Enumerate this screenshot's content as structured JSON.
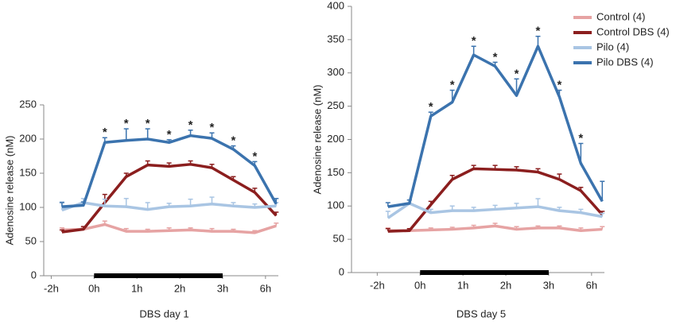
{
  "chart_data": [
    {
      "type": "line",
      "ylabel": "Adenosine release (nM)",
      "xlabel": "DBS day 1",
      "xlim": [
        -0.85,
        10.1
      ],
      "ylim": [
        0,
        250
      ],
      "yticks": [
        0,
        50,
        100,
        150,
        200,
        250
      ],
      "xticks": [
        {
          "value": -0.5,
          "label": "-2h"
        },
        {
          "value": 1.5,
          "label": "0h"
        },
        {
          "value": 3.5,
          "label": "1h"
        },
        {
          "value": 5.5,
          "label": "2h"
        },
        {
          "value": 7.5,
          "label": "3h"
        },
        {
          "value": 9.5,
          "label": "6h"
        }
      ],
      "stimulation_bar": [
        1.5,
        7.5
      ],
      "series": [
        {
          "name": "Control (4)",
          "color": "#e6a3a3",
          "values": [
            67,
            68,
            75,
            65,
            65,
            66,
            67,
            65,
            65,
            63,
            73
          ],
          "errors": [
            3,
            3,
            5,
            4,
            3,
            4,
            3,
            4,
            3,
            3,
            4
          ]
        },
        {
          "name": "Control DBS  (4)",
          "color": "#8b1e1e",
          "values": [
            64,
            68,
            107,
            145,
            162,
            160,
            163,
            158,
            140,
            122,
            88
          ],
          "errors": [
            3,
            4,
            12,
            5,
            6,
            5,
            5,
            5,
            5,
            6,
            5
          ]
        },
        {
          "name": "Pilo (4)",
          "color": "#a9c5e3",
          "values": [
            96,
            107,
            102,
            101,
            97,
            101,
            102,
            105,
            102,
            100,
            102
          ],
          "errors": [
            12,
            6,
            10,
            12,
            10,
            5,
            10,
            10,
            5,
            5,
            5
          ]
        },
        {
          "name": "Pilo DBS (4)",
          "color": "#3b73ae",
          "values": [
            101,
            103,
            195,
            198,
            200,
            195,
            205,
            201,
            185,
            161,
            105
          ],
          "errors": [
            6,
            5,
            7,
            17,
            15,
            4,
            8,
            8,
            5,
            6,
            8
          ]
        }
      ],
      "annotations": [
        {
          "x": 2,
          "text": "*"
        },
        {
          "x": 3,
          "text": "*"
        },
        {
          "x": 4,
          "text": "*"
        },
        {
          "x": 5,
          "text": "*"
        },
        {
          "x": 6,
          "text": "*"
        },
        {
          "x": 7,
          "text": "*"
        },
        {
          "x": 8,
          "text": "*"
        },
        {
          "x": 9,
          "text": "*"
        }
      ],
      "legend": "upper right"
    },
    {
      "type": "line",
      "ylabel": "Adenosine release (nM)",
      "xlabel": "DBS day 5",
      "xlim": [
        -1.7,
        10.1
      ],
      "ylim": [
        0,
        400
      ],
      "yticks": [
        0,
        50,
        100,
        150,
        200,
        250,
        300,
        350,
        400
      ],
      "xticks": [
        {
          "value": -0.5,
          "label": "-2h"
        },
        {
          "value": 1.5,
          "label": "0h"
        },
        {
          "value": 3.5,
          "label": "1h"
        },
        {
          "value": 5.5,
          "label": "2h"
        },
        {
          "value": 7.5,
          "label": "3h"
        },
        {
          "value": 9.5,
          "label": "6h"
        }
      ],
      "stimulation_bar": [
        1.5,
        7.5
      ],
      "series": [
        {
          "color": "#e6a3a3",
          "values": [
            63,
            63,
            64,
            65,
            67,
            70,
            65,
            67,
            67,
            63,
            65
          ],
          "errors": [
            4,
            3,
            3,
            3,
            4,
            4,
            4,
            3,
            3,
            4,
            4
          ]
        },
        {
          "color": "#8b1e1e",
          "values": [
            62,
            63,
            102,
            140,
            156,
            155,
            154,
            151,
            140,
            123,
            87
          ],
          "errors": [
            4,
            3,
            5,
            6,
            5,
            6,
            5,
            5,
            8,
            5,
            5
          ]
        },
        {
          "color": "#a9c5e3",
          "values": [
            82,
            104,
            90,
            93,
            93,
            95,
            97,
            99,
            93,
            90,
            84
          ],
          "errors": [
            10,
            5,
            5,
            7,
            5,
            6,
            7,
            12,
            5,
            5,
            5
          ]
        },
        {
          "color": "#3b73ae",
          "values": [
            99,
            104,
            235,
            256,
            327,
            310,
            266,
            340,
            264,
            164,
            107
          ],
          "errors": [
            6,
            5,
            6,
            18,
            13,
            6,
            25,
            15,
            10,
            30,
            30
          ]
        }
      ],
      "annotations": [
        {
          "x": 2,
          "text": "*"
        },
        {
          "x": 3,
          "text": "*"
        },
        {
          "x": 4,
          "text": "*"
        },
        {
          "x": 5,
          "text": "*"
        },
        {
          "x": 6,
          "text": "*"
        },
        {
          "x": 7,
          "text": "*"
        },
        {
          "x": 8,
          "text": "*"
        },
        {
          "x": 9,
          "text": "*"
        }
      ]
    }
  ]
}
